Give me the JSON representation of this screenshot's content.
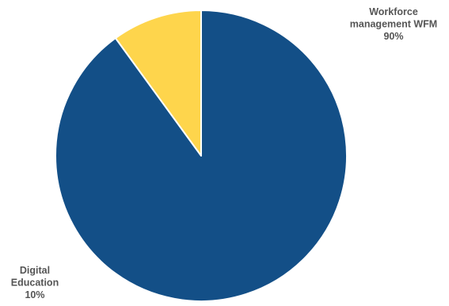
{
  "chart_data": {
    "type": "pie",
    "title": "",
    "start_angle_deg": 0,
    "direction": "clockwise",
    "slices": [
      {
        "name": "Workforce management WFM",
        "label_lines": [
          "Workforce",
          "management WFM",
          "90%"
        ],
        "value": 90,
        "percent_label": "90%",
        "color": "#134f87"
      },
      {
        "name": "Digital Education",
        "label_lines": [
          "Digital",
          "Education",
          "10%"
        ],
        "value": 10,
        "percent_label": "10%",
        "color": "#fed54c"
      }
    ],
    "slice_border_color": "#ffffff"
  }
}
